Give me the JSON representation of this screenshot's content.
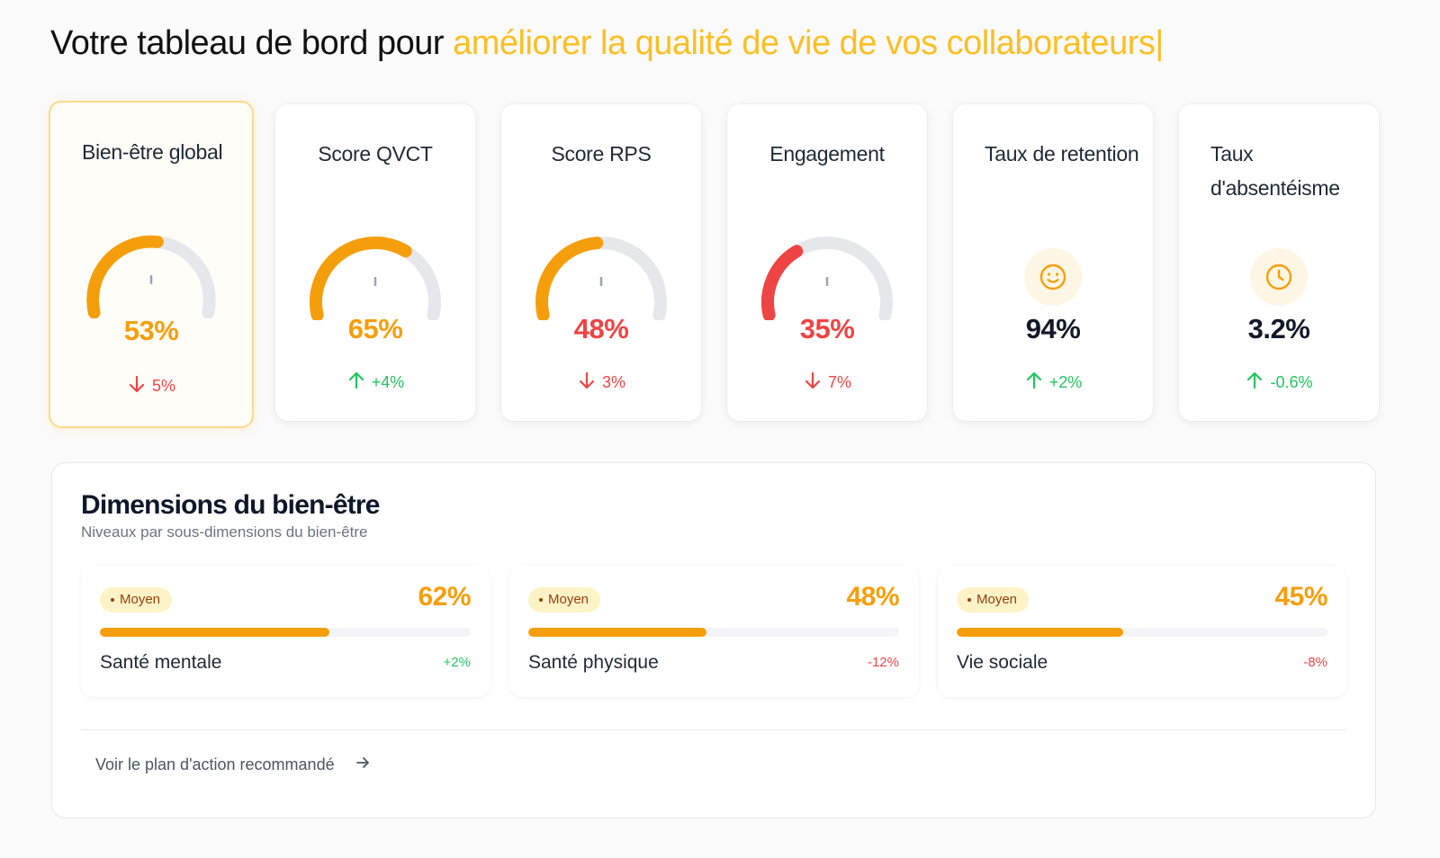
{
  "header": {
    "prefix": "Votre tableau de bord pour",
    "accent": "améliorer la qualité de vie de vos collaborateurs",
    "caret": "|"
  },
  "colors": {
    "accent": "#fbbf24",
    "orange": "#f59e0b",
    "red": "#ef4444",
    "green": "#22c55e",
    "track": "#e5e7eb"
  },
  "kpis": [
    {
      "title": "Bien-être global",
      "value": "53%",
      "level": 0.53,
      "color": "#f59e0b",
      "delta": "5%",
      "trend": "down",
      "trend_color": "#ef4444",
      "kind": "gauge"
    },
    {
      "title": "Score QVCT",
      "value": "65%",
      "level": 0.65,
      "color": "#f59e0b",
      "delta": "+4%",
      "trend": "up",
      "trend_color": "#22c55e",
      "kind": "gauge"
    },
    {
      "title": "Score RPS",
      "value": "48%",
      "level": 0.48,
      "color": "#ef4444",
      "gauge_color": "#f59e0b",
      "delta": "3%",
      "trend": "down",
      "trend_color": "#ef4444",
      "kind": "gauge"
    },
    {
      "title": "Engagement",
      "value": "35%",
      "level": 0.35,
      "color": "#ef4444",
      "delta": "7%",
      "trend": "down",
      "trend_color": "#ef4444",
      "kind": "gauge"
    },
    {
      "title": "Taux de retention",
      "value": "94%",
      "icon": "smiley-icon",
      "delta": "+2%",
      "trend": "up",
      "trend_color": "#22c55e",
      "kind": "icon"
    },
    {
      "title": "Taux d'absentéisme",
      "value": "3.2%",
      "icon": "clock-icon",
      "delta": "-0.6%",
      "trend": "up",
      "trend_color": "#22c55e",
      "kind": "icon"
    }
  ],
  "dimensions": {
    "title": "Dimensions du bien-être",
    "subtitle": "Niveaux par sous-dimensions du bien-être",
    "items": [
      {
        "badge": "Moyen",
        "percent": "62%",
        "level": 0.62,
        "name": "Santé mentale",
        "change": "+2%",
        "change_color": "#22c55e"
      },
      {
        "badge": "Moyen",
        "percent": "48%",
        "level": 0.48,
        "name": "Santé physique",
        "change": "-12%",
        "change_color": "#ef4444"
      },
      {
        "badge": "Moyen",
        "percent": "45%",
        "level": 0.45,
        "name": "Vie sociale",
        "change": "-8%",
        "change_color": "#ef4444"
      }
    ],
    "action_link": "Voir le plan d'action recommandé"
  }
}
